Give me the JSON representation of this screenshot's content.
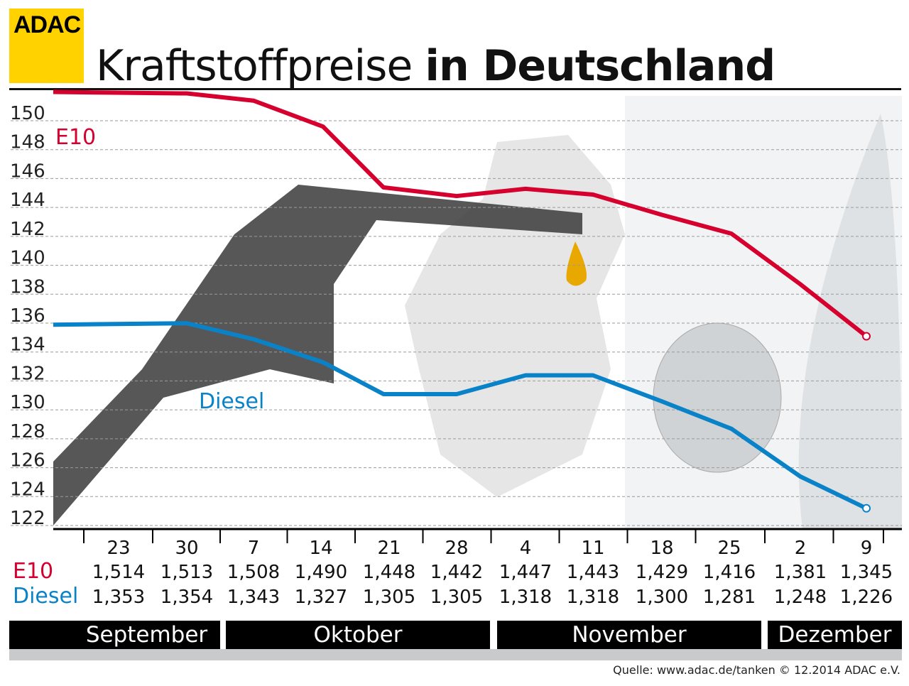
{
  "logo": "ADAC",
  "title": {
    "light": "Kraftstoffpreise",
    "bold": "in Deutschland"
  },
  "source": "Quelle: www.adac.de/tanken  © 12.2014  ADAC e.V.",
  "colors": {
    "e10": "#d6002f",
    "diesel": "#0a82c8",
    "logo": "#ffd200"
  },
  "chart_data": {
    "type": "line",
    "title": "Kraftstoffpreise in Deutschland",
    "ylim": [
      122,
      151
    ],
    "yticks": [
      150,
      148,
      146,
      144,
      142,
      140,
      138,
      136,
      134,
      132,
      130,
      128,
      126,
      124,
      122
    ],
    "grid": true,
    "categories": [
      "23",
      "30",
      "7",
      "14",
      "21",
      "28",
      "4",
      "11",
      "18",
      "25",
      "2",
      "9"
    ],
    "months": [
      "September",
      "Oktober",
      "November",
      "Dezember"
    ],
    "series": [
      {
        "name": "E10",
        "values": [
          151.4,
          151.3,
          150.8,
          149.0,
          144.8,
          144.2,
          144.7,
          144.3,
          142.9,
          141.6,
          138.1,
          134.5
        ],
        "labels": [
          "1,514",
          "1,513",
          "1,508",
          "1,490",
          "1,448",
          "1,442",
          "1,447",
          "1,443",
          "1,429",
          "1,416",
          "1,381",
          "1,345"
        ]
      },
      {
        "name": "Diesel",
        "values": [
          135.3,
          135.4,
          134.3,
          132.7,
          130.5,
          130.5,
          131.8,
          131.8,
          130.0,
          128.1,
          124.8,
          122.6
        ],
        "labels": [
          "1,353",
          "1,354",
          "1,343",
          "1,327",
          "1,305",
          "1,305",
          "1,318",
          "1,318",
          "1,300",
          "1,281",
          "1,248",
          "1,226"
        ]
      }
    ]
  }
}
